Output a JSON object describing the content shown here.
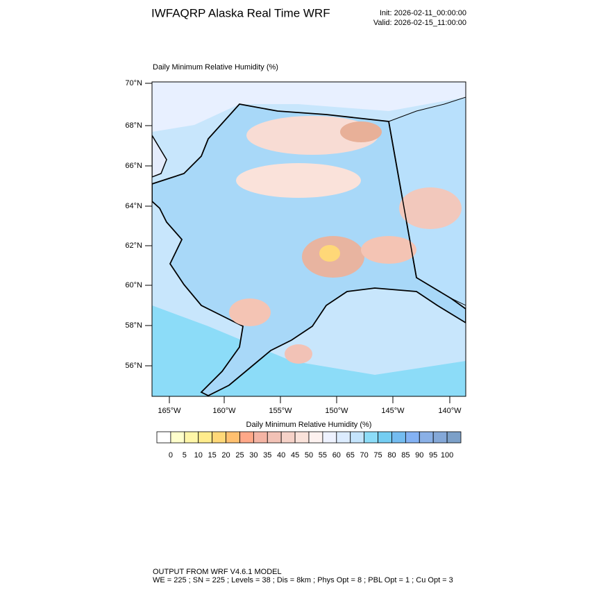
{
  "header": {
    "title": "IWFAQRP Alaska Real Time WRF",
    "init": "Init: 2026-02-11_00:00:00",
    "valid": "Valid: 2026-02-15_11:00:00"
  },
  "map": {
    "title": "Daily Minimum Relative Humidity   (%)",
    "lat_labels": [
      "70°N",
      "68°N",
      "66°N",
      "64°N",
      "62°N",
      "60°N",
      "58°N",
      "56°N"
    ],
    "lon_labels": [
      "165°W",
      "160°W",
      "155°W",
      "150°W",
      "145°W",
      "140°W"
    ]
  },
  "colorbar": {
    "title": "Daily Minimum Relative Humidity  (%)",
    "levels": [
      0,
      5,
      10,
      15,
      20,
      25,
      30,
      35,
      40,
      45,
      50,
      55,
      60,
      65,
      70,
      75,
      80,
      85,
      90,
      95,
      100
    ],
    "colors": [
      "#ffffff",
      "#ffffcc",
      "#fff6a8",
      "#ffec8c",
      "#ffd878",
      "#ffc070",
      "#ffa888",
      "#f4b4a4",
      "#f2c2b6",
      "#f6d2c8",
      "#fae2da",
      "#fdf2f0",
      "#eef2ff",
      "#dcecff",
      "#c4e4fc",
      "#8cdcf8",
      "#74cdf2",
      "#74bcf0",
      "#84b2f4",
      "#8ab0e6",
      "#84a8d8",
      "#7ca0c8"
    ]
  },
  "footer": {
    "line1": "OUTPUT FROM WRF V4.6.1 MODEL",
    "line2": "WE = 225 ; SN = 225 ; Levels = 38 ; Dis = 8km ; Phys Opt = 8 ; PBL Opt = 1 ; Cu Opt = 3"
  }
}
